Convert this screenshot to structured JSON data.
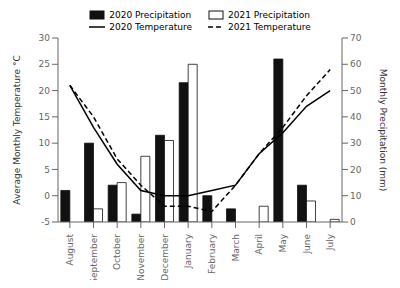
{
  "chart_data": {
    "type": "bar",
    "categories": [
      "August",
      "September",
      "October",
      "November",
      "December",
      "January",
      "February",
      "March",
      "April",
      "May",
      "June",
      "July"
    ],
    "series": [
      {
        "name": "2020 Precipitation",
        "type": "bar",
        "axis": "y2",
        "color": "#111111",
        "values": [
          12,
          30,
          14,
          3,
          33,
          53,
          10,
          5,
          0,
          62,
          14,
          0
        ]
      },
      {
        "name": "2021 Precipitation",
        "type": "bar",
        "axis": "y2",
        "color": "#ffffff",
        "values": [
          0,
          5,
          15,
          25,
          31,
          60,
          0,
          0,
          6,
          0,
          8,
          1
        ]
      },
      {
        "name": "2020 Temperature",
        "type": "line",
        "axis": "y",
        "color": "#000000",
        "line_style": "solid",
        "values": [
          21,
          13,
          6,
          1,
          0,
          0,
          1,
          2,
          8,
          12,
          17,
          20
        ]
      },
      {
        "name": "2021 Temperature",
        "type": "line",
        "axis": "y",
        "color": "#000000",
        "line_style": "dashed",
        "values": [
          21,
          15,
          7,
          2,
          -2,
          -2,
          -3,
          2,
          8,
          13,
          19,
          24
        ]
      }
    ],
    "ylabel": "Average Monthly Temperature °C",
    "y2label": "Monthly Precipitation (mm)",
    "ylim": [
      -5,
      30
    ],
    "yticks": [
      -5,
      0,
      5,
      10,
      15,
      20,
      25,
      30
    ],
    "y2lim": [
      0,
      70
    ],
    "y2ticks": [
      0,
      10,
      20,
      30,
      40,
      50,
      60,
      70
    ],
    "grid": false,
    "legend": "top"
  }
}
